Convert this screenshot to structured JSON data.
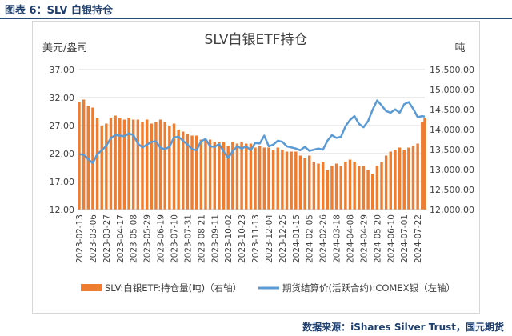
{
  "figure_label": "图表 6：SLV 白银持仓",
  "source_note": "数据来源：iShares Silver Trust，国元期货",
  "colors": {
    "bar": "#ED7D31",
    "line": "#5B9BD5",
    "text": "#404040",
    "brand": "#1f3f6e"
  },
  "chart_data": {
    "type": "bar+line",
    "title": "SLV白银ETF持仓",
    "left_unit": "美元/盎司",
    "right_unit": "吨",
    "left_axis": {
      "ticks": [
        "37.00",
        "32.00",
        "27.00",
        "22.00",
        "17.00",
        "12.00"
      ],
      "range": [
        12,
        37
      ]
    },
    "right_axis": {
      "ticks": [
        "15,500.00",
        "15,000.00",
        "14,500.00",
        "14,000.00",
        "13,500.00",
        "13,000.00",
        "12,500.00",
        "12,000.00"
      ],
      "range": [
        12000,
        15500
      ]
    },
    "x_labels": [
      "2023-02-13",
      "2023-03-06",
      "2023-03-27",
      "2023-04-17",
      "2023-05-08",
      "2023-05-29",
      "2023-06-19",
      "2023-07-10",
      "2023-07-31",
      "2023-08-21",
      "2023-09-11",
      "2023-10-02",
      "2023-10-23",
      "2023-11-13",
      "2023-12-04",
      "2023-12-25",
      "2024-01-15",
      "2024-02-05",
      "2024-02-26",
      "2024-03-18",
      "2024-04-08",
      "2024-04-29",
      "2024-05-20",
      "2024-06-10",
      "2024-07-01",
      "2024-07-22"
    ],
    "x_range": [
      "2023-02-13",
      "2024-08-02"
    ],
    "grid": "horizontal",
    "legend_position": "bottom",
    "series": [
      {
        "name": "SLV:白银ETF:持仓量(吨)（右轴）",
        "kind": "bar",
        "axis": "right",
        "points": [
          [
            "2023-02-13",
            14700
          ],
          [
            "2023-02-20",
            14750
          ],
          [
            "2023-02-27",
            14600
          ],
          [
            "2023-03-06",
            14550
          ],
          [
            "2023-03-13",
            14300
          ],
          [
            "2023-03-20",
            14100
          ],
          [
            "2023-03-27",
            14150
          ],
          [
            "2023-04-03",
            14300
          ],
          [
            "2023-04-10",
            14350
          ],
          [
            "2023-04-17",
            14300
          ],
          [
            "2023-04-24",
            14250
          ],
          [
            "2023-05-01",
            14300
          ],
          [
            "2023-05-08",
            14250
          ],
          [
            "2023-05-15",
            14250
          ],
          [
            "2023-05-22",
            14200
          ],
          [
            "2023-05-29",
            14250
          ],
          [
            "2023-06-05",
            14150
          ],
          [
            "2023-06-12",
            14200
          ],
          [
            "2023-06-19",
            14250
          ],
          [
            "2023-06-26",
            14200
          ],
          [
            "2023-07-03",
            14100
          ],
          [
            "2023-07-10",
            14150
          ],
          [
            "2023-07-17",
            14000
          ],
          [
            "2023-07-24",
            13950
          ],
          [
            "2023-07-31",
            13900
          ],
          [
            "2023-08-07",
            13850
          ],
          [
            "2023-08-14",
            13850
          ],
          [
            "2023-08-21",
            13750
          ],
          [
            "2023-08-28",
            13750
          ],
          [
            "2023-09-04",
            13750
          ],
          [
            "2023-09-11",
            13700
          ],
          [
            "2023-09-18",
            13700
          ],
          [
            "2023-09-25",
            13700
          ],
          [
            "2023-10-02",
            13600
          ],
          [
            "2023-10-09",
            13700
          ],
          [
            "2023-10-16",
            13650
          ],
          [
            "2023-10-23",
            13700
          ],
          [
            "2023-10-30",
            13650
          ],
          [
            "2023-11-06",
            13650
          ],
          [
            "2023-11-13",
            13550
          ],
          [
            "2023-11-20",
            13600
          ],
          [
            "2023-11-27",
            13550
          ],
          [
            "2023-12-04",
            13550
          ],
          [
            "2023-12-11",
            13500
          ],
          [
            "2023-12-18",
            13550
          ],
          [
            "2023-12-25",
            13500
          ],
          [
            "2024-01-01",
            13450
          ],
          [
            "2024-01-08",
            13450
          ],
          [
            "2024-01-15",
            13450
          ],
          [
            "2024-01-22",
            13350
          ],
          [
            "2024-01-29",
            13300
          ],
          [
            "2024-02-05",
            13350
          ],
          [
            "2024-02-12",
            13200
          ],
          [
            "2024-02-19",
            13150
          ],
          [
            "2024-02-26",
            13200
          ],
          [
            "2024-03-04",
            13000
          ],
          [
            "2024-03-11",
            13100
          ],
          [
            "2024-03-18",
            13150
          ],
          [
            "2024-03-25",
            13100
          ],
          [
            "2024-04-01",
            13200
          ],
          [
            "2024-04-08",
            13250
          ],
          [
            "2024-04-15",
            13200
          ],
          [
            "2024-04-22",
            13100
          ],
          [
            "2024-04-29",
            13100
          ],
          [
            "2024-05-06",
            13000
          ],
          [
            "2024-05-13",
            12900
          ],
          [
            "2024-05-20",
            13100
          ],
          [
            "2024-05-27",
            13200
          ],
          [
            "2024-06-03",
            13350
          ],
          [
            "2024-06-10",
            13450
          ],
          [
            "2024-06-17",
            13500
          ],
          [
            "2024-06-24",
            13550
          ],
          [
            "2024-07-01",
            13500
          ],
          [
            "2024-07-08",
            13550
          ],
          [
            "2024-07-15",
            13600
          ],
          [
            "2024-07-22",
            13650
          ],
          [
            "2024-07-29",
            14200
          ],
          [
            "2024-08-02",
            14300
          ]
        ]
      },
      {
        "name": "期货结算价(活跃合约):COMEX银（左轴）",
        "kind": "line",
        "axis": "left",
        "points": [
          [
            "2023-02-13",
            21.9
          ],
          [
            "2023-02-20",
            21.8
          ],
          [
            "2023-02-27",
            21.0
          ],
          [
            "2023-03-06",
            20.3
          ],
          [
            "2023-03-13",
            21.9
          ],
          [
            "2023-03-20",
            22.6
          ],
          [
            "2023-03-27",
            23.4
          ],
          [
            "2023-04-03",
            24.8
          ],
          [
            "2023-04-10",
            25.3
          ],
          [
            "2023-04-17",
            25.2
          ],
          [
            "2023-04-24",
            25.1
          ],
          [
            "2023-05-01",
            25.6
          ],
          [
            "2023-05-08",
            25.3
          ],
          [
            "2023-05-15",
            23.8
          ],
          [
            "2023-05-22",
            23.1
          ],
          [
            "2023-05-29",
            23.6
          ],
          [
            "2023-06-05",
            24.1
          ],
          [
            "2023-06-12",
            24.2
          ],
          [
            "2023-06-19",
            23.0
          ],
          [
            "2023-06-26",
            22.8
          ],
          [
            "2023-07-03",
            23.2
          ],
          [
            "2023-07-10",
            24.9
          ],
          [
            "2023-07-17",
            25.0
          ],
          [
            "2023-07-24",
            24.3
          ],
          [
            "2023-07-31",
            23.6
          ],
          [
            "2023-08-07",
            22.8
          ],
          [
            "2023-08-14",
            22.6
          ],
          [
            "2023-08-21",
            24.2
          ],
          [
            "2023-08-28",
            24.6
          ],
          [
            "2023-09-04",
            23.3
          ],
          [
            "2023-09-11",
            23.2
          ],
          [
            "2023-09-18",
            23.7
          ],
          [
            "2023-09-25",
            22.4
          ],
          [
            "2023-10-02",
            21.2
          ],
          [
            "2023-10-09",
            22.4
          ],
          [
            "2023-10-16",
            23.3
          ],
          [
            "2023-10-23",
            22.9
          ],
          [
            "2023-10-30",
            23.3
          ],
          [
            "2023-11-06",
            22.6
          ],
          [
            "2023-11-13",
            23.9
          ],
          [
            "2023-11-20",
            23.8
          ],
          [
            "2023-11-27",
            25.2
          ],
          [
            "2023-12-04",
            23.3
          ],
          [
            "2023-12-11",
            23.6
          ],
          [
            "2023-12-18",
            24.3
          ],
          [
            "2023-12-25",
            24.1
          ],
          [
            "2024-01-01",
            23.3
          ],
          [
            "2024-01-08",
            23.1
          ],
          [
            "2024-01-15",
            22.9
          ],
          [
            "2024-01-22",
            22.6
          ],
          [
            "2024-01-29",
            23.2
          ],
          [
            "2024-02-05",
            22.5
          ],
          [
            "2024-02-12",
            22.7
          ],
          [
            "2024-02-19",
            22.9
          ],
          [
            "2024-02-26",
            22.7
          ],
          [
            "2024-03-04",
            24.3
          ],
          [
            "2024-03-11",
            25.3
          ],
          [
            "2024-03-18",
            24.8
          ],
          [
            "2024-03-25",
            25.0
          ],
          [
            "2024-04-01",
            26.9
          ],
          [
            "2024-04-08",
            28.0
          ],
          [
            "2024-04-15",
            28.7
          ],
          [
            "2024-04-22",
            27.3
          ],
          [
            "2024-04-29",
            26.7
          ],
          [
            "2024-05-06",
            27.8
          ],
          [
            "2024-05-13",
            29.8
          ],
          [
            "2024-05-20",
            31.5
          ],
          [
            "2024-05-27",
            30.6
          ],
          [
            "2024-06-03",
            29.6
          ],
          [
            "2024-06-10",
            29.3
          ],
          [
            "2024-06-17",
            29.9
          ],
          [
            "2024-06-24",
            29.3
          ],
          [
            "2024-07-01",
            30.8
          ],
          [
            "2024-07-08",
            31.2
          ],
          [
            "2024-07-15",
            30.0
          ],
          [
            "2024-07-22",
            28.5
          ],
          [
            "2024-07-29",
            28.7
          ],
          [
            "2024-08-02",
            28.6
          ]
        ]
      }
    ]
  }
}
